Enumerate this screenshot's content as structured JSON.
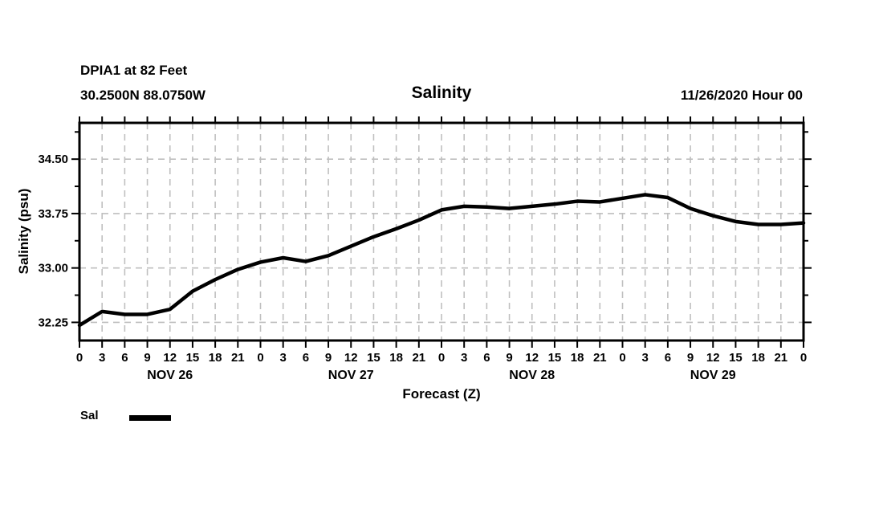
{
  "header": {
    "station_line": "DPIA1 at 82 Feet",
    "coords_line": "30.2500N 88.0750W",
    "title": "Salinity",
    "datetime": "11/26/2020 Hour 00"
  },
  "colors": {
    "background": "#ffffff",
    "text": "#000000",
    "grid": "#bfbfbf",
    "line": "#000000"
  },
  "legend": {
    "entries": [
      {
        "label": "Sal",
        "color": "#000000"
      }
    ]
  },
  "chart_data": {
    "type": "line",
    "title": "Salinity",
    "xlabel": "Forecast (Z)",
    "ylabel": "Salinity (psu)",
    "ylim": [
      32.0,
      35.0
    ],
    "xlim_hours": [
      0,
      96
    ],
    "grid": "dashed gray; vertical every 3 hours, horizontal at labeled y ticks",
    "legend_position": "bottom-left",
    "y_major_ticks": [
      32.25,
      33.0,
      33.75,
      34.5
    ],
    "y_major_labels": [
      "32.25",
      "33.00",
      "33.75",
      "34.50"
    ],
    "y_minor_ticks": [
      32.625,
      33.375,
      34.125,
      34.875
    ],
    "x_tick_step_hours": 3,
    "x_hour_label_cycle": [
      "0",
      "3",
      "6",
      "9",
      "12",
      "15",
      "18",
      "21"
    ],
    "day_labels": [
      {
        "label": "NOV 26",
        "center_hour": 12
      },
      {
        "label": "NOV 27",
        "center_hour": 36
      },
      {
        "label": "NOV 28",
        "center_hour": 60
      },
      {
        "label": "NOV 29",
        "center_hour": 84
      }
    ],
    "series": [
      {
        "name": "Sal",
        "hours": [
          0,
          3,
          6,
          9,
          12,
          15,
          18,
          21,
          24,
          27,
          30,
          33,
          36,
          39,
          42,
          45,
          48,
          51,
          54,
          57,
          60,
          63,
          66,
          69,
          72,
          75,
          78,
          81,
          84,
          87,
          90,
          93,
          96
        ],
        "values": [
          32.21,
          32.4,
          32.36,
          32.36,
          32.43,
          32.68,
          32.84,
          32.98,
          33.08,
          33.14,
          33.09,
          33.17,
          33.3,
          33.43,
          33.54,
          33.66,
          33.8,
          33.85,
          33.84,
          33.82,
          33.85,
          33.88,
          33.92,
          33.91,
          33.96,
          34.01,
          33.97,
          33.82,
          33.72,
          33.64,
          33.6,
          33.6,
          33.62
        ]
      }
    ]
  }
}
